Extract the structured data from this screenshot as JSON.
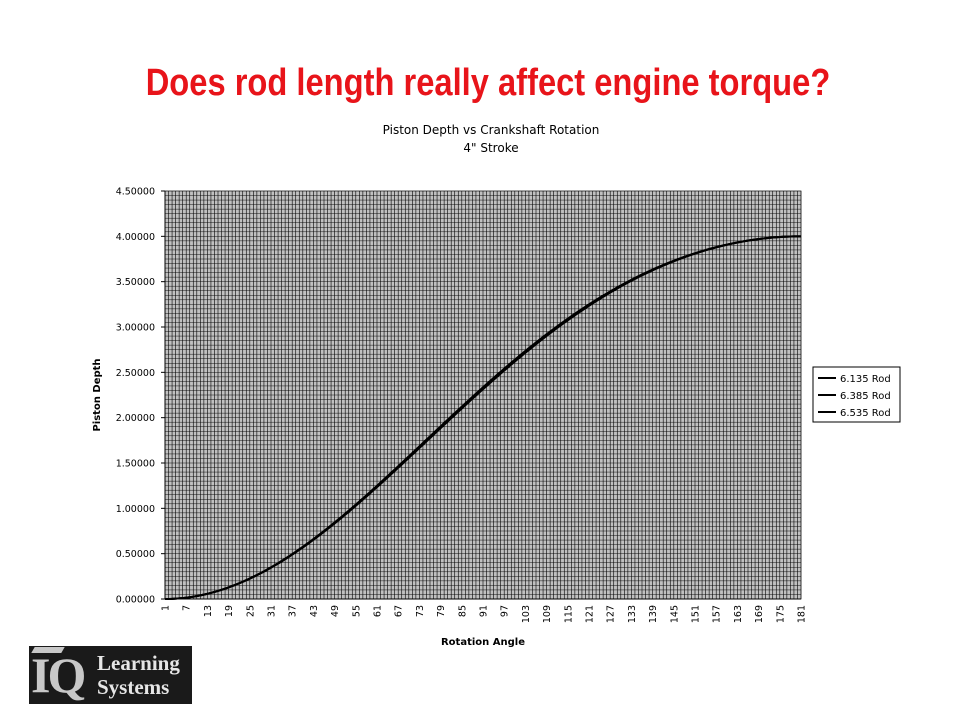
{
  "slide": {
    "title": "Does rod length really affect engine torque?"
  },
  "logo": {
    "mark": "IQ",
    "line1": "Learning",
    "line2": "Systems"
  },
  "chart_data": {
    "type": "line",
    "title": "Piston Depth vs Crankshaft Rotation",
    "subtitle": "4\" Stroke",
    "xlabel": "Rotation Angle",
    "ylabel": "Piston Depth",
    "x_start": 1,
    "x_end": 181,
    "x_tick_step": 6,
    "ylim": [
      0,
      4.5
    ],
    "y_ticks": [
      0,
      0.5,
      1.0,
      1.5,
      2.0,
      2.5,
      3.0,
      3.5,
      4.0,
      4.5
    ],
    "y_tick_decimals": 5,
    "plot_background": "#c0c0c0",
    "grid": true,
    "legend_position": "right",
    "stroke": 4,
    "rod_lengths": [
      6.135,
      6.385,
      6.535
    ],
    "series": [
      {
        "name": "6.135 Rod",
        "rod": 6.135,
        "color": "#000000"
      },
      {
        "name": "6.385 Rod",
        "rod": 6.385,
        "color": "#000000"
      },
      {
        "name": "6.535 Rod",
        "rod": 6.535,
        "color": "#000000"
      }
    ]
  }
}
